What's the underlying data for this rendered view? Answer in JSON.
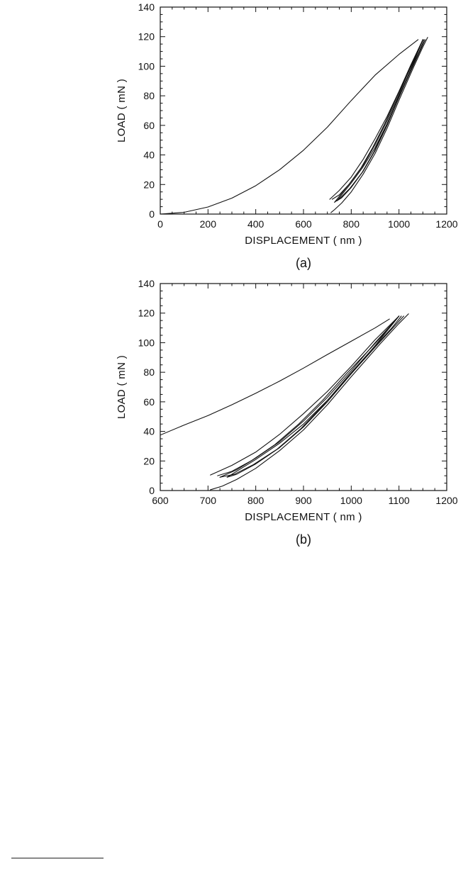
{
  "colors": {
    "line": "#111111",
    "axis": "#111111",
    "background": "#ffffff"
  },
  "chart_data": [
    {
      "type": "line",
      "panel_label": "(a)",
      "xlabel": "DISPLACEMENT ( nm )",
      "ylabel": "LOAD ( mN )",
      "xlim": [
        0,
        1200
      ],
      "ylim": [
        0,
        140
      ],
      "x_ticks": [
        "0",
        "200",
        "400",
        "600",
        "800",
        "1000",
        "1200"
      ],
      "y_ticks": [
        "0",
        "20",
        "40",
        "60",
        "80",
        "100",
        "120",
        "140"
      ],
      "grid": false,
      "series": [
        {
          "points": [
            [
              0,
              0
            ],
            [
              100,
              1.2
            ],
            [
              200,
              4.8
            ],
            [
              300,
              10.8
            ],
            [
              400,
              19.2
            ],
            [
              500,
              30
            ],
            [
              600,
              43.2
            ],
            [
              700,
              58.8
            ],
            [
              800,
              76.8
            ],
            [
              900,
              94
            ],
            [
              1000,
              108
            ],
            [
              1080,
              118
            ]
          ]
        },
        {
          "points": [
            [
              1120,
              119.5
            ],
            [
              1100,
              113
            ],
            [
              1060,
              99
            ],
            [
              1000,
              77
            ],
            [
              950,
              58
            ],
            [
              900,
              41
            ],
            [
              850,
              27
            ],
            [
              800,
              15
            ],
            [
              760,
              7.5
            ],
            [
              730,
              3
            ],
            [
              715,
              1
            ]
          ]
        },
        {
          "points": [
            [
              1110,
              118
            ],
            [
              1090,
              111
            ],
            [
              1050,
              97
            ],
            [
              1000,
              79
            ],
            [
              950,
              60
            ],
            [
              900,
              43
            ],
            [
              850,
              29
            ],
            [
              800,
              18
            ],
            [
              760,
              11
            ],
            [
              740,
              9
            ]
          ]
        },
        {
          "points": [
            [
              740,
              9
            ],
            [
              770,
              15
            ],
            [
              800,
              21
            ],
            [
              850,
              32
            ],
            [
              900,
              45
            ],
            [
              950,
              61
            ],
            [
              1000,
              79
            ],
            [
              1050,
              98
            ],
            [
              1100,
              118
            ]
          ]
        },
        {
          "points": [
            [
              1105,
              118
            ],
            [
              1085,
              110
            ],
            [
              1045,
              96
            ],
            [
              995,
              78
            ],
            [
              945,
              59
            ],
            [
              895,
              42
            ],
            [
              845,
              28
            ],
            [
              795,
              17.5
            ],
            [
              755,
              11
            ],
            [
              730,
              8
            ]
          ]
        },
        {
          "points": [
            [
              730,
              8
            ],
            [
              760,
              14
            ],
            [
              800,
              22
            ],
            [
              850,
              33
            ],
            [
              900,
              47
            ],
            [
              950,
              63
            ],
            [
              1000,
              81
            ],
            [
              1050,
              100
            ],
            [
              1100,
              118
            ]
          ]
        },
        {
          "points": [
            [
              1100,
              118
            ],
            [
              1080,
              110
            ],
            [
              1040,
              96
            ],
            [
              990,
              79
            ],
            [
              940,
              61
            ],
            [
              890,
              45
            ],
            [
              840,
              31
            ],
            [
              790,
              20
            ],
            [
              750,
              13
            ],
            [
              720,
              10
            ]
          ]
        },
        {
          "points": [
            [
              710,
              10
            ],
            [
              750,
              16
            ],
            [
              800,
              25
            ],
            [
              850,
              37
            ],
            [
              900,
              51
            ],
            [
              950,
              66
            ],
            [
              1000,
              83
            ],
            [
              1050,
              101
            ],
            [
              1100,
              118
            ]
          ]
        }
      ]
    },
    {
      "type": "line",
      "panel_label": "(b)",
      "xlabel": "DISPLACEMENT ( nm )",
      "ylabel": "LOAD ( mN )",
      "xlim": [
        600,
        1200
      ],
      "ylim": [
        0,
        140
      ],
      "x_ticks": [
        "600",
        "700",
        "800",
        "900",
        "1000",
        "1100",
        "1200"
      ],
      "y_ticks": [
        "0",
        "20",
        "40",
        "60",
        "80",
        "100",
        "120",
        "140"
      ],
      "grid": false,
      "series": [
        {
          "points": [
            [
              600,
              37.5
            ],
            [
              650,
              44.3
            ],
            [
              700,
              50.7
            ],
            [
              750,
              58
            ],
            [
              800,
              65.8
            ],
            [
              850,
              74
            ],
            [
              900,
              82.8
            ],
            [
              950,
              92
            ],
            [
              1000,
              101
            ],
            [
              1050,
              110
            ],
            [
              1080,
              116
            ]
          ]
        },
        {
          "points": [
            [
              1120,
              119.5
            ],
            [
              1100,
              113
            ],
            [
              1060,
              99
            ],
            [
              1000,
              77
            ],
            [
              950,
              58
            ],
            [
              900,
              41
            ],
            [
              850,
              27
            ],
            [
              800,
              15
            ],
            [
              760,
              7.5
            ],
            [
              730,
              3
            ],
            [
              705,
              0.5
            ]
          ]
        },
        {
          "points": [
            [
              1110,
              118
            ],
            [
              1090,
              111
            ],
            [
              1050,
              97
            ],
            [
              1000,
              79
            ],
            [
              950,
              60
            ],
            [
              900,
              43
            ],
            [
              850,
              29
            ],
            [
              800,
              18
            ],
            [
              760,
              11
            ],
            [
              740,
              9
            ]
          ]
        },
        {
          "points": [
            [
              740,
              9
            ],
            [
              770,
              15
            ],
            [
              800,
              21
            ],
            [
              850,
              32
            ],
            [
              900,
              45
            ],
            [
              950,
              61
            ],
            [
              1000,
              79
            ],
            [
              1050,
              98
            ],
            [
              1100,
              118
            ]
          ]
        },
        {
          "points": [
            [
              1105,
              118
            ],
            [
              1085,
              110
            ],
            [
              1045,
              96
            ],
            [
              995,
              78
            ],
            [
              945,
              59
            ],
            [
              895,
              42
            ],
            [
              845,
              28
            ],
            [
              795,
              17.5
            ],
            [
              755,
              11
            ],
            [
              725,
              9
            ]
          ]
        },
        {
          "points": [
            [
              725,
              9
            ],
            [
              760,
              14
            ],
            [
              800,
              22
            ],
            [
              850,
              33
            ],
            [
              900,
              47
            ],
            [
              950,
              63
            ],
            [
              1000,
              81
            ],
            [
              1050,
              100
            ],
            [
              1100,
              118
            ]
          ]
        },
        {
          "points": [
            [
              1100,
              118
            ],
            [
              1080,
              110
            ],
            [
              1040,
              96
            ],
            [
              990,
              79
            ],
            [
              940,
              61
            ],
            [
              890,
              45
            ],
            [
              840,
              31
            ],
            [
              790,
              20
            ],
            [
              750,
              13
            ],
            [
              720,
              10
            ]
          ]
        },
        {
          "points": [
            [
              705,
              10.5
            ],
            [
              750,
              17
            ],
            [
              800,
              26
            ],
            [
              850,
              38
            ],
            [
              900,
              52
            ],
            [
              950,
              67
            ],
            [
              1000,
              84
            ],
            [
              1050,
              102
            ],
            [
              1100,
              118
            ]
          ]
        }
      ]
    }
  ]
}
